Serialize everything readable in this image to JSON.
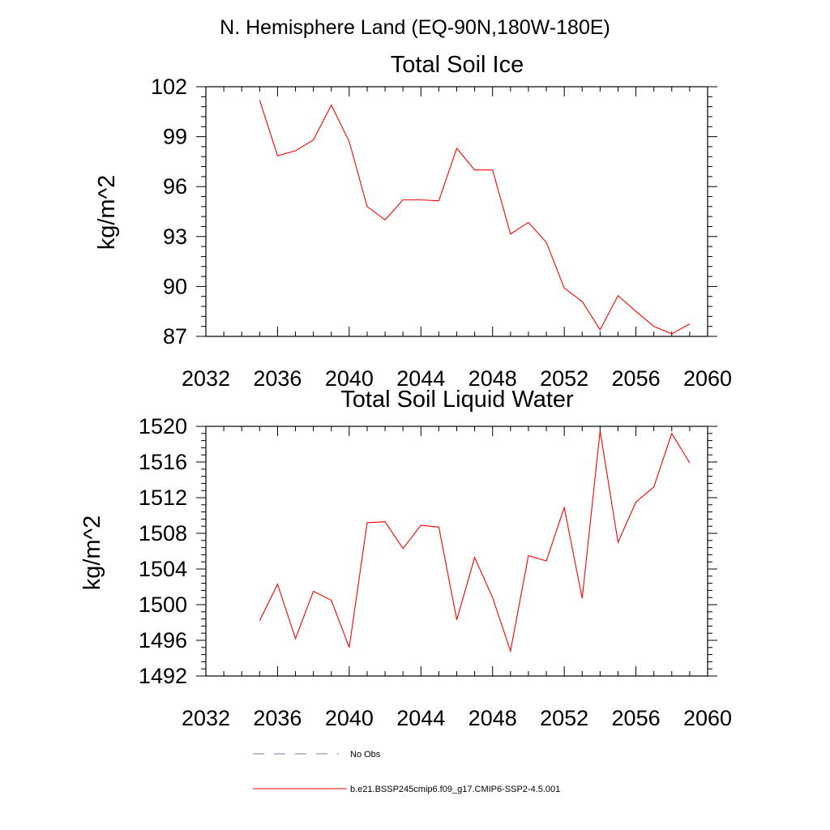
{
  "page": {
    "suptitle": "N. Hemisphere Land (EQ-90N,180W-180E)"
  },
  "chart_data": [
    {
      "type": "line",
      "title": "Total Soil Ice",
      "ylabel": "kg/m^2",
      "xlabel": "",
      "xlim": [
        2032,
        2060
      ],
      "ylim": [
        87,
        102
      ],
      "x_ticks": [
        2032,
        2036,
        2040,
        2044,
        2048,
        2052,
        2056,
        2060
      ],
      "y_ticks": [
        87,
        90,
        93,
        96,
        99,
        102
      ],
      "series": [
        {
          "color": "#ff0000",
          "x": [
            2035,
            2036,
            2037,
            2038,
            2039,
            2040,
            2041,
            2042,
            2043,
            2044,
            2045,
            2046,
            2047,
            2048,
            2049,
            2050,
            2051,
            2052,
            2053,
            2054,
            2055,
            2056,
            2057,
            2058,
            2059
          ],
          "y": [
            101.2,
            97.85,
            98.15,
            98.8,
            100.9,
            98.7,
            94.8,
            94.0,
            95.2,
            95.2,
            95.15,
            98.3,
            97.0,
            97.0,
            93.15,
            93.85,
            92.65,
            89.9,
            89.1,
            87.4,
            89.45,
            88.5,
            87.6,
            87.15,
            87.75
          ]
        }
      ]
    },
    {
      "type": "line",
      "title": "Total Soil Liquid Water",
      "ylabel": "kg/m^2",
      "xlabel": "",
      "xlim": [
        2032,
        2060
      ],
      "ylim": [
        1492,
        1520
      ],
      "x_ticks": [
        2032,
        2036,
        2040,
        2044,
        2048,
        2052,
        2056,
        2060
      ],
      "y_ticks": [
        1492,
        1496,
        1500,
        1504,
        1508,
        1512,
        1516,
        1520
      ],
      "series": [
        {
          "color": "#ff0000",
          "x": [
            2035,
            2036,
            2037,
            2038,
            2039,
            2040,
            2041,
            2042,
            2043,
            2044,
            2045,
            2046,
            2047,
            2048,
            2049,
            2050,
            2051,
            2052,
            2053,
            2054,
            2055,
            2056,
            2057,
            2058,
            2059
          ],
          "y": [
            1498.2,
            1502.3,
            1496.2,
            1501.5,
            1500.5,
            1495.2,
            1509.2,
            1509.3,
            1506.3,
            1508.9,
            1508.7,
            1498.3,
            1505.3,
            1500.8,
            1494.8,
            1505.5,
            1504.9,
            1510.9,
            1500.7,
            1519.5,
            1507.0,
            1511.5,
            1513.2,
            1519.2,
            1515.9
          ]
        }
      ]
    }
  ],
  "legend": {
    "items": [
      {
        "label": "No Obs",
        "style": "dashed",
        "color": "#7080a0"
      },
      {
        "label": "b.e21.BSSP245cmip6.f09_g17.CMIP6-SSP2-4.5.001",
        "style": "solid",
        "color": "#ff0000"
      }
    ]
  }
}
